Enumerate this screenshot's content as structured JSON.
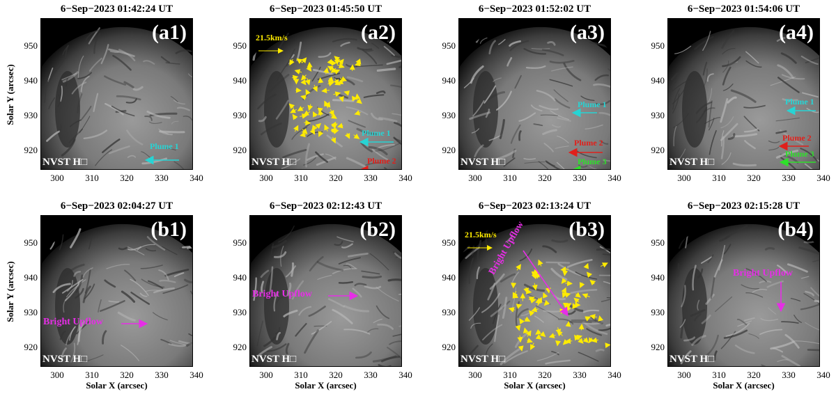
{
  "figure": {
    "ylabel": "Solar Y (arcsec)",
    "xlabel": "Solar X (arcsec)",
    "xticks": [
      "300",
      "310",
      "320",
      "330",
      "340"
    ],
    "yticks": [
      "950",
      "940",
      "930",
      "920"
    ],
    "instrument": "NVST H□",
    "panels": [
      {
        "title": "6−Sep−2023 01:42:24 UT",
        "label": "(a1)"
      },
      {
        "title": "6−Sep−2023 01:45:50 UT",
        "label": "(a2)",
        "speed": "21.5km/s"
      },
      {
        "title": "6−Sep−2023 01:52:02 UT",
        "label": "(a3)"
      },
      {
        "title": "6−Sep−2023 01:54:06 UT",
        "label": "(a4)"
      },
      {
        "title": "6−Sep−2023 02:04:27 UT",
        "label": "(b1)"
      },
      {
        "title": "6−Sep−2023 02:12:43 UT",
        "label": "(b2)"
      },
      {
        "title": "6−Sep−2023 02:13:24 UT",
        "label": "(b3)",
        "speed": "21.5km/s"
      },
      {
        "title": "6−Sep−2023 02:15:28 UT",
        "label": "(b4)"
      }
    ],
    "annotations": {
      "plume1": "Plume 1",
      "plume2": "Plume 2",
      "plume3": "Plume 3",
      "bright_upflow": "Bright Upflow"
    },
    "colors": {
      "plume1": "#27d4d4",
      "plume2": "#e0201b",
      "plume3": "#2ee02a",
      "bright_upflow": "#e62ee6",
      "velocity": "#ffeb00",
      "label": "#ffffff"
    }
  }
}
